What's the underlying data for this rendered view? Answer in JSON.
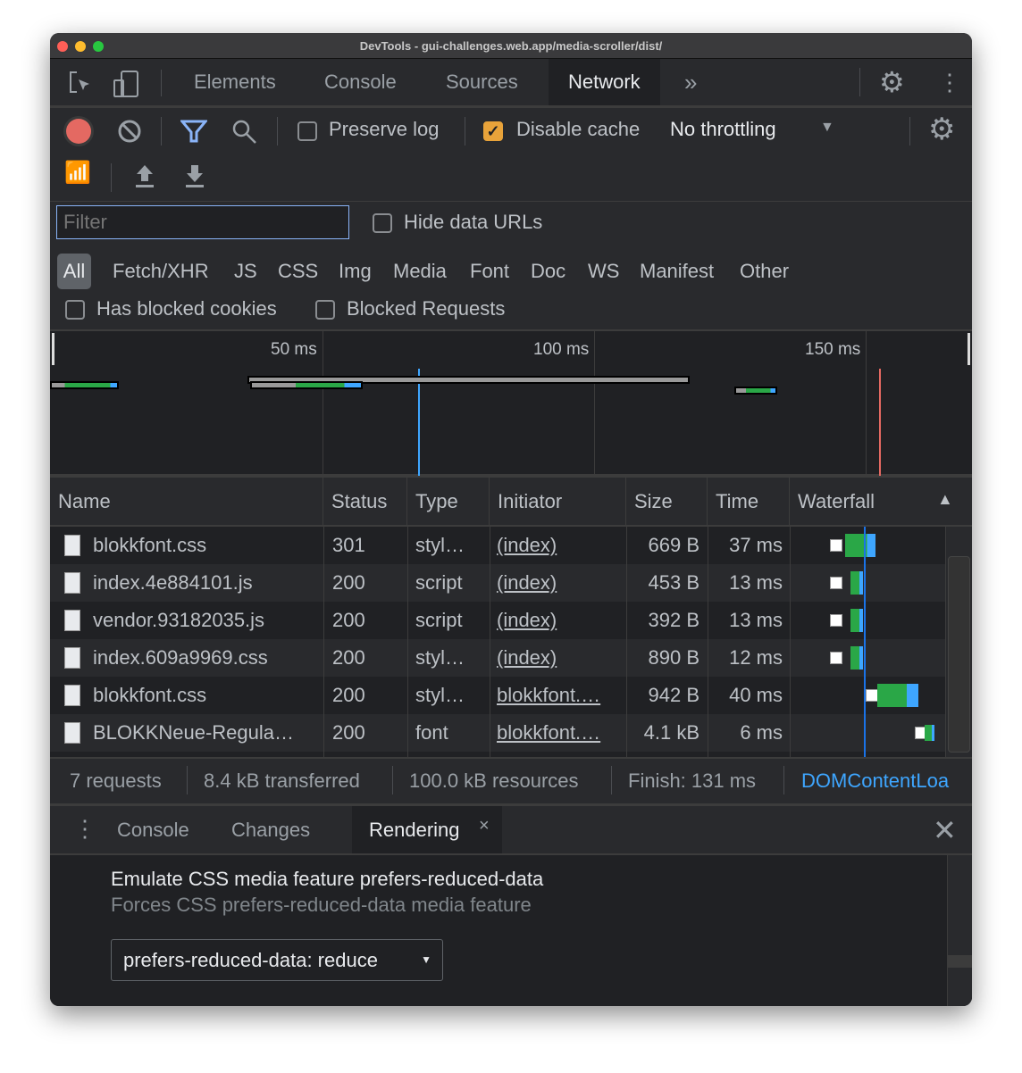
{
  "window": {
    "title": "DevTools - gui-challenges.web.app/media-scroller/dist/"
  },
  "tabs": [
    {
      "label": "Elements"
    },
    {
      "label": "Console"
    },
    {
      "label": "Sources"
    },
    {
      "label": "Network",
      "active": true
    }
  ],
  "toolbar": {
    "preserve_log": "Preserve log",
    "preserve_log_checked": false,
    "disable_cache": "Disable cache",
    "disable_cache_checked": true,
    "throttling": "No throttling"
  },
  "filter": {
    "placeholder": "Filter",
    "hide_data_urls": "Hide data URLs",
    "types": [
      "All",
      "Fetch/XHR",
      "JS",
      "CSS",
      "Img",
      "Media",
      "Font",
      "Doc",
      "WS",
      "Manifest",
      "Other"
    ],
    "active_type": "All",
    "has_blocked_cookies": "Has blocked cookies",
    "blocked_requests": "Blocked Requests"
  },
  "overview": {
    "ticks": [
      "50 ms",
      "100 ms",
      "150 ms"
    ]
  },
  "table": {
    "columns": [
      "Name",
      "Status",
      "Type",
      "Initiator",
      "Size",
      "Time",
      "Waterfall"
    ],
    "sort": "Waterfall ascending",
    "rows": [
      {
        "name": "blokkfont.css",
        "status": "301",
        "type": "styl…",
        "initiator": "(index)",
        "size": "669 B",
        "time": "37 ms"
      },
      {
        "name": "index.4e884101.js",
        "status": "200",
        "type": "script",
        "initiator": "(index)",
        "size": "453 B",
        "time": "13 ms"
      },
      {
        "name": "vendor.93182035.js",
        "status": "200",
        "type": "script",
        "initiator": "(index)",
        "size": "392 B",
        "time": "13 ms"
      },
      {
        "name": "index.609a9969.css",
        "status": "200",
        "type": "styl…",
        "initiator": "(index)",
        "size": "890 B",
        "time": "12 ms"
      },
      {
        "name": "blokkfont.css",
        "status": "200",
        "type": "styl…",
        "initiator": "blokkfont.…",
        "size": "942 B",
        "time": "40 ms"
      },
      {
        "name": "BLOKKNeue-Regula…",
        "status": "200",
        "type": "font",
        "initiator": "blokkfont.…",
        "size": "4.1 kB",
        "time": "6 ms"
      }
    ]
  },
  "summary": {
    "requests": "7 requests",
    "transferred": "8.4 kB transferred",
    "resources": "100.0 kB resources",
    "finish": "Finish: 131 ms",
    "dcl": "DOMContentLoa"
  },
  "drawer": {
    "tabs": [
      "Console",
      "Changes",
      "Rendering"
    ],
    "active": "Rendering"
  },
  "rendering": {
    "title": "Emulate CSS media feature prefers-reduced-data",
    "subtitle": "Forces CSS prefers-reduced-data media feature",
    "select_value": "prefers-reduced-data: reduce"
  },
  "colors": {
    "accent": "#1a73e8",
    "dcl": "#3ea6ff",
    "load": "#e46962",
    "waiting": "#2aa747",
    "download": "#3ea6ff",
    "checkbox": "#e8a33a"
  }
}
